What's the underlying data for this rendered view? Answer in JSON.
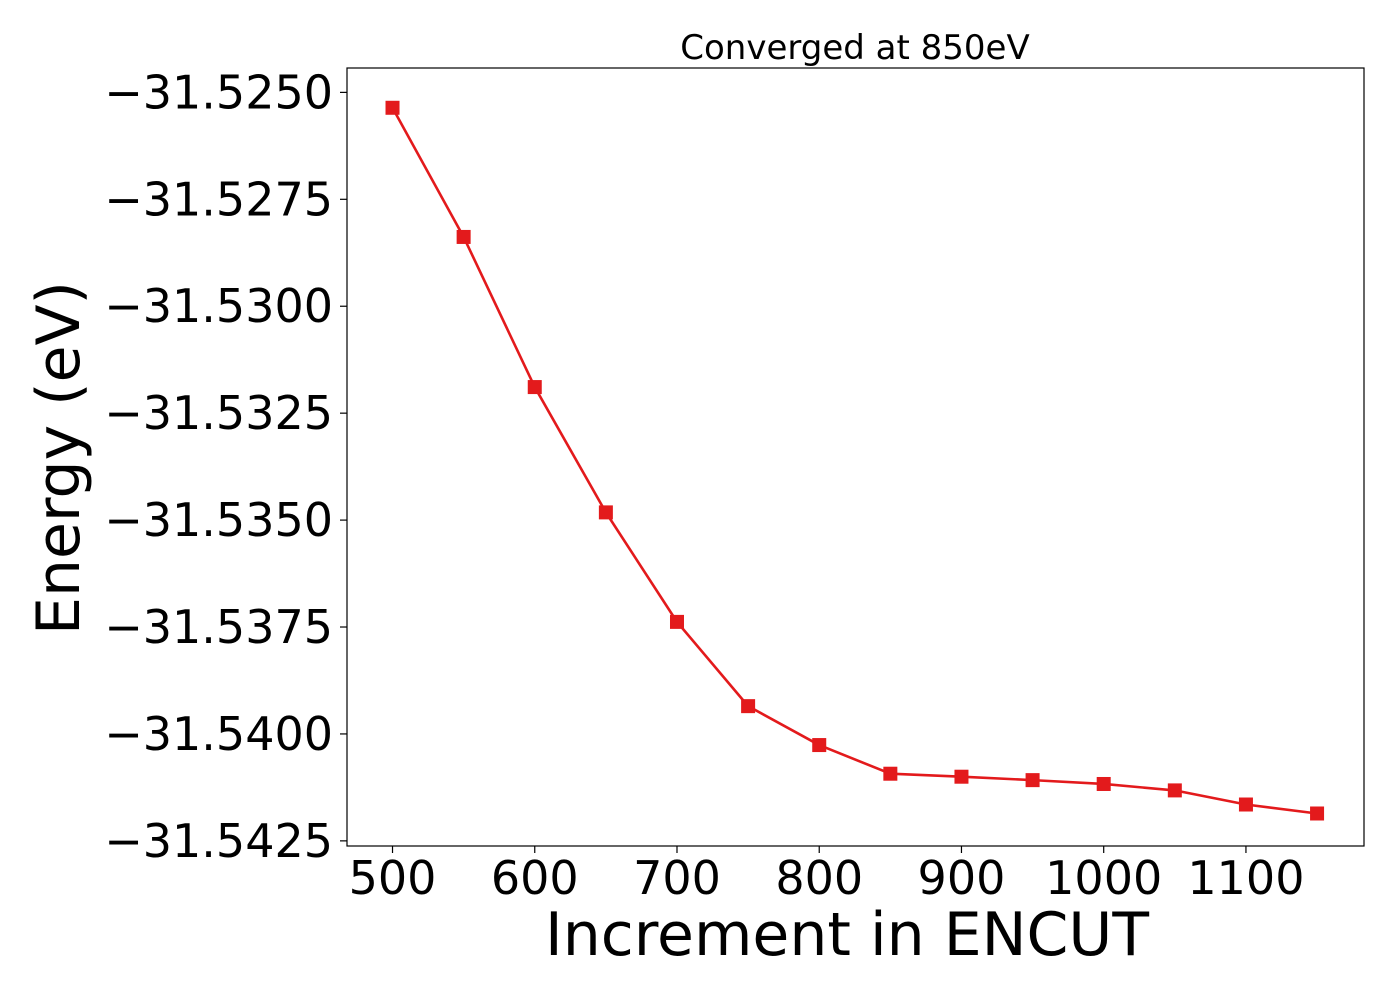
{
  "chart_data": {
    "type": "line",
    "title": "Converged at 850eV",
    "xlabel": "Increment in ENCUT",
    "ylabel": "Energy (eV)",
    "xlim": [
      468,
      1183
    ],
    "ylim": [
      -31.54262,
      -31.52443
    ],
    "xticks": [
      500,
      600,
      700,
      800,
      900,
      1000,
      1100
    ],
    "xtick_labels": [
      "500",
      "600",
      "700",
      "800",
      "900",
      "1000",
      "1100"
    ],
    "yticks": [
      -31.525,
      -31.5275,
      -31.53,
      -31.5325,
      -31.535,
      -31.5375,
      -31.54,
      -31.5425
    ],
    "ytick_labels": [
      "−31.5250",
      "−31.5275",
      "−31.5300",
      "−31.5325",
      "−31.5350",
      "−31.5375",
      "−31.5400",
      "−31.5425"
    ],
    "grid": false,
    "series": [
      {
        "name": "Energy",
        "color": "#e31a1c",
        "marker": "square",
        "x": [
          500,
          550,
          600,
          650,
          700,
          750,
          800,
          850,
          900,
          950,
          1000,
          1050,
          1100,
          1150
        ],
        "values": [
          -31.52536,
          -31.52838,
          -31.53189,
          -31.53482,
          -31.53738,
          -31.53935,
          -31.54026,
          -31.54093,
          -31.541,
          -31.54108,
          -31.54117,
          -31.54132,
          -31.54165,
          -31.54186
        ]
      }
    ]
  }
}
